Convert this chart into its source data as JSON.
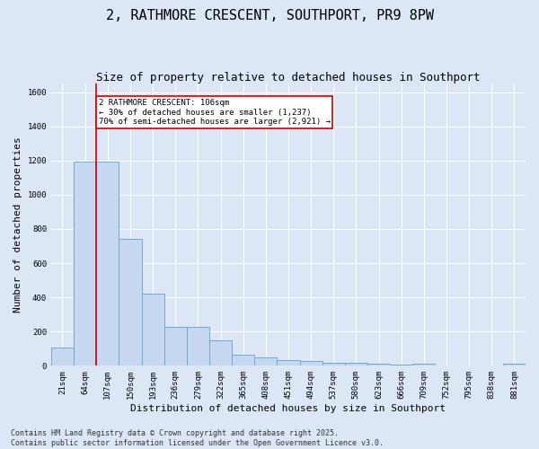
{
  "title": "2, RATHMORE CRESCENT, SOUTHPORT, PR9 8PW",
  "subtitle": "Size of property relative to detached houses in Southport",
  "xlabel": "Distribution of detached houses by size in Southport",
  "ylabel": "Number of detached properties",
  "categories": [
    "21sqm",
    "64sqm",
    "107sqm",
    "150sqm",
    "193sqm",
    "236sqm",
    "279sqm",
    "322sqm",
    "365sqm",
    "408sqm",
    "451sqm",
    "494sqm",
    "537sqm",
    "580sqm",
    "623sqm",
    "666sqm",
    "709sqm",
    "752sqm",
    "795sqm",
    "838sqm",
    "881sqm"
  ],
  "values": [
    105,
    1195,
    1195,
    740,
    420,
    225,
    225,
    150,
    65,
    50,
    35,
    30,
    18,
    15,
    10,
    5,
    10,
    0,
    0,
    0,
    10
  ],
  "bar_color": "#c5d8f0",
  "bar_edge_color": "#6aaad4",
  "vline_color": "#cc0000",
  "annotation_text": "2 RATHMORE CRESCENT: 106sqm\n← 30% of detached houses are smaller (1,237)\n70% of semi-detached houses are larger (2,921) →",
  "annotation_box_color": "#ffffff",
  "annotation_box_edgecolor": "#cc0000",
  "footer": "Contains HM Land Registry data © Crown copyright and database right 2025.\nContains public sector information licensed under the Open Government Licence v3.0.",
  "ylim": [
    0,
    1650
  ],
  "background_color": "#dce6f5",
  "plot_background": "#dce6f5",
  "grid_color": "#ffffff",
  "title_fontsize": 11,
  "subtitle_fontsize": 9,
  "ylabel_fontsize": 8,
  "xlabel_fontsize": 8,
  "tick_fontsize": 6.5,
  "footer_fontsize": 6
}
